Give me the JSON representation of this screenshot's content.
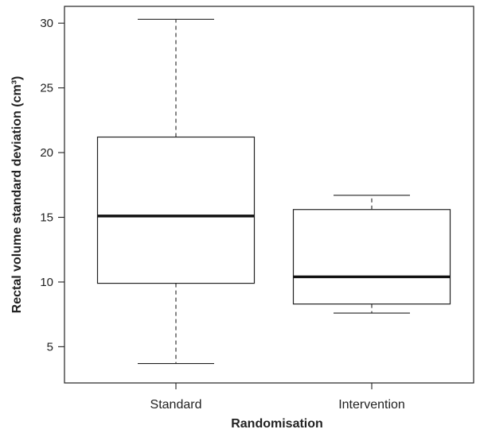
{
  "chart_data": {
    "type": "box",
    "title": "",
    "xlabel": "Randomisation",
    "ylabel": "Rectal volume standard deviation (cm³)",
    "categories": [
      "Standard",
      "Intervention"
    ],
    "ylim": [
      2.2,
      31.3
    ],
    "yticks": [
      5,
      10,
      15,
      20,
      25,
      30
    ],
    "grid": false,
    "series": [
      {
        "category": "Standard",
        "whisker_low": 3.7,
        "q1": 9.9,
        "median": 15.1,
        "q3": 21.2,
        "whisker_high": 30.3
      },
      {
        "category": "Intervention",
        "whisker_low": 7.6,
        "q1": 8.3,
        "median": 10.4,
        "q3": 15.6,
        "whisker_high": 16.7
      }
    ]
  }
}
